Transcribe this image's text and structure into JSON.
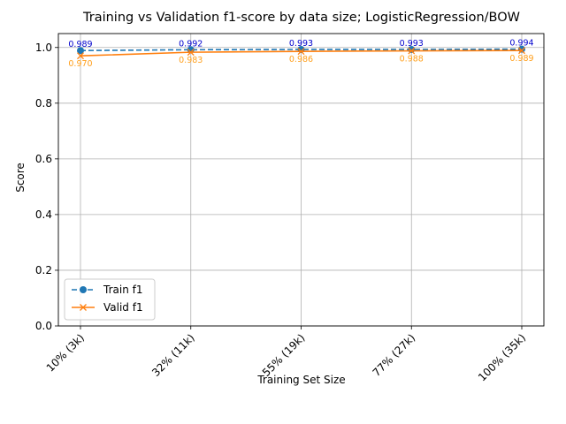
{
  "chart_data": {
    "type": "line",
    "title": "Training vs Validation f1-score by data size; LogisticRegression/BOW",
    "xlabel": "Training Set Size",
    "ylabel": "Score",
    "categories": [
      "10% (3k)",
      "32% (11k)",
      "55% (19k)",
      "77% (27k)",
      "100% (35k)"
    ],
    "ylim": [
      0.0,
      1.05
    ],
    "yticks": [
      "0.0",
      "0.2",
      "0.4",
      "0.6",
      "0.8",
      "1.0"
    ],
    "grid": true,
    "legend_position": "lower-left",
    "series": [
      {
        "name": "Train f1",
        "color": "#1f77b4",
        "label_color": "#0000cd",
        "marker": "circle",
        "linestyle": "dashed",
        "values": [
          0.989,
          0.992,
          0.993,
          0.993,
          0.994
        ],
        "labels": [
          "0.989",
          "0.992",
          "0.993",
          "0.993",
          "0.994"
        ]
      },
      {
        "name": "Valid f1",
        "color": "#ff7f0e",
        "label_color": "#ff9f1c",
        "marker": "x",
        "linestyle": "solid",
        "values": [
          0.97,
          0.983,
          0.986,
          0.988,
          0.989
        ],
        "labels": [
          "0.970",
          "0.983",
          "0.986",
          "0.988",
          "0.989"
        ]
      }
    ]
  }
}
